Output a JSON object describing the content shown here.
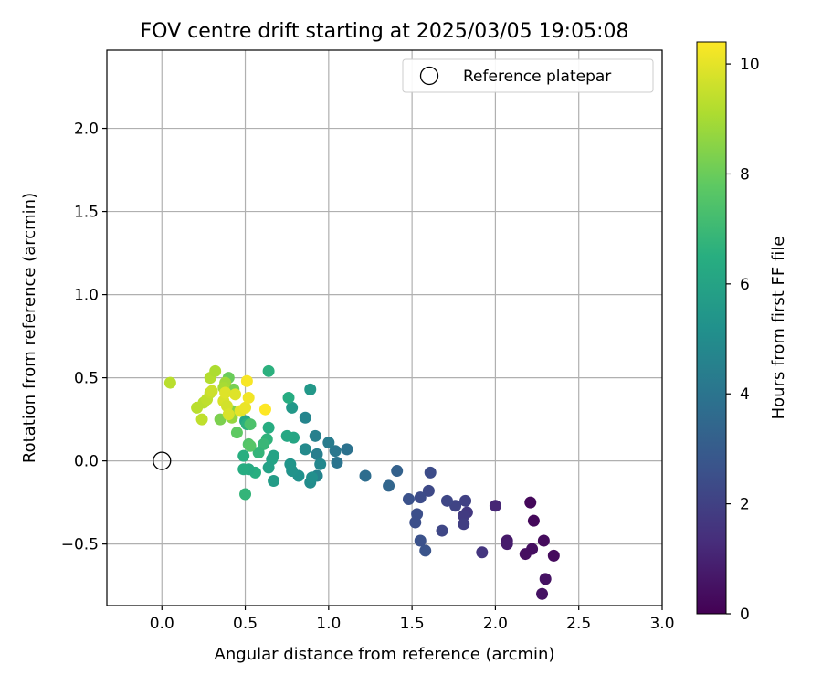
{
  "chart_data": {
    "type": "scatter",
    "title": "FOV centre drift starting at 2025/03/05 19:05:08",
    "xlabel": "Angular distance from reference (arcmin)",
    "ylabel": "Rotation from reference (arcmin)",
    "xlim": [
      -0.33,
      3.0
    ],
    "ylim": [
      -0.87,
      2.47
    ],
    "x_ticks": [
      0.0,
      0.5,
      1.0,
      1.5,
      2.0,
      2.5,
      3.0
    ],
    "x_tick_labels": [
      "0.0",
      "0.5",
      "1.0",
      "1.5",
      "2.0",
      "2.5",
      "3.0"
    ],
    "y_ticks": [
      -0.5,
      0.0,
      0.5,
      1.0,
      1.5,
      2.0
    ],
    "y_tick_labels": [
      "−0.5",
      "0.0",
      "0.5",
      "1.0",
      "1.5",
      "2.0"
    ],
    "grid": true,
    "legend": {
      "placement": "top-right",
      "entries": [
        {
          "label": "Reference platepar",
          "marker": "open-circle",
          "x": 0.0,
          "y": 0.0
        }
      ]
    },
    "colorbar": {
      "label": "Hours from first FF file",
      "colormap": "viridis",
      "range": [
        0,
        10.4
      ],
      "ticks": [
        0,
        2,
        4,
        6,
        8,
        10
      ],
      "tick_labels": [
        "0",
        "2",
        "4",
        "6",
        "8",
        "10"
      ]
    },
    "series": [
      {
        "color_by": "hours",
        "points": [
          {
            "x": 2.21,
            "y": -0.25,
            "c": 0.2
          },
          {
            "x": 2.23,
            "y": -0.36,
            "c": 0.2
          },
          {
            "x": 2.29,
            "y": -0.48,
            "c": 0.3
          },
          {
            "x": 2.35,
            "y": -0.57,
            "c": 0.3
          },
          {
            "x": 2.22,
            "y": -0.53,
            "c": 0.4
          },
          {
            "x": 2.18,
            "y": -0.56,
            "c": 0.4
          },
          {
            "x": 2.3,
            "y": -0.71,
            "c": 0.5
          },
          {
            "x": 2.28,
            "y": -0.8,
            "c": 0.5
          },
          {
            "x": 2.07,
            "y": -0.48,
            "c": 0.7
          },
          {
            "x": 2.07,
            "y": -0.5,
            "c": 0.8
          },
          {
            "x": 2.0,
            "y": -0.27,
            "c": 1.1
          },
          {
            "x": 1.92,
            "y": -0.55,
            "c": 1.6
          },
          {
            "x": 1.83,
            "y": -0.31,
            "c": 1.7
          },
          {
            "x": 1.81,
            "y": -0.33,
            "c": 1.8
          },
          {
            "x": 1.81,
            "y": -0.38,
            "c": 1.9
          },
          {
            "x": 1.82,
            "y": -0.24,
            "c": 2.0
          },
          {
            "x": 1.76,
            "y": -0.27,
            "c": 2.1
          },
          {
            "x": 1.71,
            "y": -0.24,
            "c": 2.2
          },
          {
            "x": 1.68,
            "y": -0.42,
            "c": 2.2
          },
          {
            "x": 1.6,
            "y": -0.18,
            "c": 2.3
          },
          {
            "x": 1.61,
            "y": -0.07,
            "c": 2.4
          },
          {
            "x": 1.55,
            "y": -0.22,
            "c": 2.4
          },
          {
            "x": 1.53,
            "y": -0.32,
            "c": 2.5
          },
          {
            "x": 1.52,
            "y": -0.37,
            "c": 2.5
          },
          {
            "x": 1.48,
            "y": -0.23,
            "c": 2.6
          },
          {
            "x": 1.55,
            "y": -0.48,
            "c": 2.6
          },
          {
            "x": 1.58,
            "y": -0.54,
            "c": 2.7
          },
          {
            "x": 1.41,
            "y": -0.06,
            "c": 3.2
          },
          {
            "x": 1.36,
            "y": -0.15,
            "c": 3.4
          },
          {
            "x": 1.22,
            "y": -0.09,
            "c": 3.7
          },
          {
            "x": 1.11,
            "y": 0.07,
            "c": 3.9
          },
          {
            "x": 1.05,
            "y": -0.01,
            "c": 4.0
          },
          {
            "x": 1.04,
            "y": 0.06,
            "c": 4.1
          },
          {
            "x": 1.0,
            "y": 0.11,
            "c": 4.3
          },
          {
            "x": 0.93,
            "y": 0.04,
            "c": 4.4
          },
          {
            "x": 0.92,
            "y": 0.15,
            "c": 4.5
          },
          {
            "x": 0.93,
            "y": -0.09,
            "c": 4.6
          },
          {
            "x": 0.95,
            "y": -0.02,
            "c": 4.8
          },
          {
            "x": 0.86,
            "y": 0.26,
            "c": 4.7
          },
          {
            "x": 0.86,
            "y": 0.07,
            "c": 4.9
          },
          {
            "x": 0.89,
            "y": -0.13,
            "c": 5.0
          },
          {
            "x": 0.9,
            "y": -0.1,
            "c": 5.1
          },
          {
            "x": 0.82,
            "y": -0.09,
            "c": 5.2
          },
          {
            "x": 0.78,
            "y": -0.06,
            "c": 5.3
          },
          {
            "x": 0.77,
            "y": -0.02,
            "c": 5.4
          },
          {
            "x": 0.78,
            "y": 0.32,
            "c": 5.5
          },
          {
            "x": 0.89,
            "y": 0.43,
            "c": 5.5
          },
          {
            "x": 0.79,
            "y": 0.14,
            "c": 6.1
          },
          {
            "x": 0.75,
            "y": 0.15,
            "c": 6.2
          },
          {
            "x": 0.76,
            "y": 0.38,
            "c": 6.4
          },
          {
            "x": 0.67,
            "y": 0.03,
            "c": 6.0
          },
          {
            "x": 0.66,
            "y": 0.01,
            "c": 6.0
          },
          {
            "x": 0.67,
            "y": -0.12,
            "c": 5.7
          },
          {
            "x": 0.64,
            "y": -0.04,
            "c": 5.9
          },
          {
            "x": 0.64,
            "y": 0.2,
            "c": 6.4
          },
          {
            "x": 0.64,
            "y": 0.54,
            "c": 6.6
          },
          {
            "x": 0.63,
            "y": 0.13,
            "c": 6.7
          },
          {
            "x": 0.61,
            "y": 0.1,
            "c": 6.9
          },
          {
            "x": 0.58,
            "y": 0.05,
            "c": 6.8
          },
          {
            "x": 0.56,
            "y": -0.07,
            "c": 6.5
          },
          {
            "x": 0.52,
            "y": -0.05,
            "c": 6.3
          },
          {
            "x": 0.49,
            "y": -0.05,
            "c": 6.4
          },
          {
            "x": 0.5,
            "y": -0.2,
            "c": 6.8
          },
          {
            "x": 0.49,
            "y": 0.03,
            "c": 6.5
          },
          {
            "x": 0.5,
            "y": 0.24,
            "c": 6.2
          },
          {
            "x": 0.51,
            "y": 0.22,
            "c": 6.6
          },
          {
            "x": 0.53,
            "y": 0.22,
            "c": 7.4
          },
          {
            "x": 0.52,
            "y": 0.1,
            "c": 7.5
          },
          {
            "x": 0.53,
            "y": 0.09,
            "c": 7.6
          },
          {
            "x": 0.45,
            "y": 0.17,
            "c": 7.8
          },
          {
            "x": 0.4,
            "y": 0.5,
            "c": 8.0
          },
          {
            "x": 0.43,
            "y": 0.43,
            "c": 8.2
          },
          {
            "x": 0.35,
            "y": 0.25,
            "c": 8.3
          },
          {
            "x": 0.42,
            "y": 0.3,
            "c": 8.4
          },
          {
            "x": 0.42,
            "y": 0.26,
            "c": 8.7
          },
          {
            "x": 0.38,
            "y": 0.47,
            "c": 8.9
          },
          {
            "x": 0.37,
            "y": 0.44,
            "c": 9.0
          },
          {
            "x": 0.29,
            "y": 0.5,
            "c": 9.2
          },
          {
            "x": 0.32,
            "y": 0.54,
            "c": 9.1
          },
          {
            "x": 0.25,
            "y": 0.35,
            "c": 9.3
          },
          {
            "x": 0.27,
            "y": 0.37,
            "c": 9.4
          },
          {
            "x": 0.29,
            "y": 0.41,
            "c": 9.5
          },
          {
            "x": 0.3,
            "y": 0.42,
            "c": 9.6
          },
          {
            "x": 0.21,
            "y": 0.32,
            "c": 9.3
          },
          {
            "x": 0.24,
            "y": 0.25,
            "c": 9.4
          },
          {
            "x": 0.05,
            "y": 0.47,
            "c": 9.3
          },
          {
            "x": 0.37,
            "y": 0.36,
            "c": 9.8
          },
          {
            "x": 0.38,
            "y": 0.41,
            "c": 9.9
          },
          {
            "x": 0.39,
            "y": 0.33,
            "c": 9.7
          },
          {
            "x": 0.4,
            "y": 0.28,
            "c": 9.8
          },
          {
            "x": 0.44,
            "y": 0.4,
            "c": 9.9
          },
          {
            "x": 0.47,
            "y": 0.3,
            "c": 10.0
          },
          {
            "x": 0.5,
            "y": 0.32,
            "c": 10.1
          },
          {
            "x": 0.52,
            "y": 0.38,
            "c": 10.2
          },
          {
            "x": 0.51,
            "y": 0.48,
            "c": 10.3
          },
          {
            "x": 0.62,
            "y": 0.31,
            "c": 10.4
          }
        ]
      }
    ]
  }
}
